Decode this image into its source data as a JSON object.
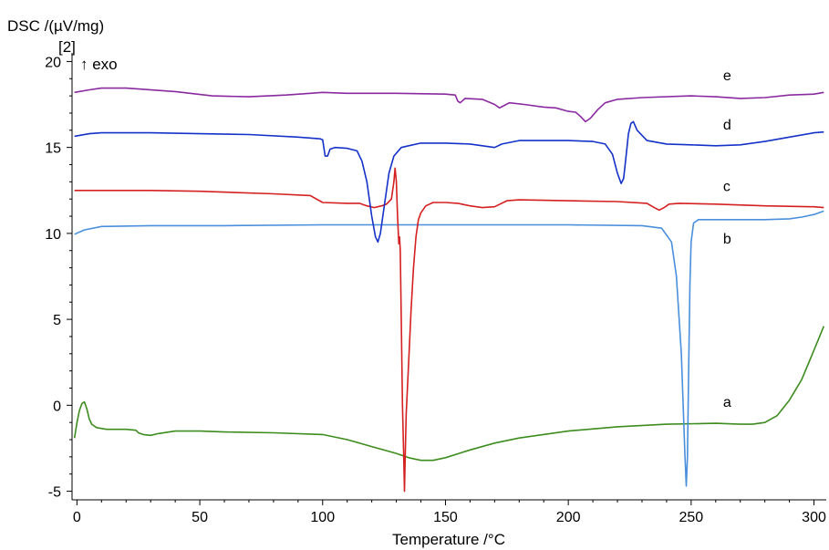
{
  "chart_data": {
    "type": "line",
    "title": "",
    "ylabel": "DSC /(µV/mg)",
    "ylabel_extra": "[2]",
    "y_annotation": "↑ exo",
    "xlabel": "Temperature /°C",
    "xlim": [
      -2,
      305
    ],
    "ylim": [
      -5.5,
      20.5
    ],
    "xticks": [
      "0",
      "50",
      "100",
      "150",
      "200",
      "250",
      "300"
    ],
    "yticks": [
      "-5",
      "0",
      "5",
      "10",
      "15",
      "20"
    ],
    "xtick_values": [
      0,
      50,
      100,
      150,
      200,
      250,
      300
    ],
    "ytick_values": [
      -5,
      0,
      5,
      10,
      15,
      20
    ],
    "grid": false,
    "series": [
      {
        "name": "a",
        "color": "#3c8c1e",
        "points": [
          [
            -1,
            -1.9
          ],
          [
            0,
            -1.0
          ],
          [
            1,
            -0.3
          ],
          [
            2,
            0.1
          ],
          [
            3,
            0.2
          ],
          [
            4,
            -0.2
          ],
          [
            5,
            -0.8
          ],
          [
            6,
            -1.1
          ],
          [
            8,
            -1.3
          ],
          [
            12,
            -1.4
          ],
          [
            16,
            -1.4
          ],
          [
            20,
            -1.4
          ],
          [
            24,
            -1.45
          ],
          [
            25,
            -1.6
          ],
          [
            27,
            -1.7
          ],
          [
            30,
            -1.75
          ],
          [
            33,
            -1.65
          ],
          [
            40,
            -1.5
          ],
          [
            50,
            -1.5
          ],
          [
            60,
            -1.55
          ],
          [
            80,
            -1.6
          ],
          [
            100,
            -1.7
          ],
          [
            110,
            -2.0
          ],
          [
            120,
            -2.4
          ],
          [
            130,
            -2.8
          ],
          [
            135,
            -3.05
          ],
          [
            140,
            -3.2
          ],
          [
            145,
            -3.2
          ],
          [
            150,
            -3.05
          ],
          [
            160,
            -2.6
          ],
          [
            170,
            -2.2
          ],
          [
            180,
            -1.9
          ],
          [
            200,
            -1.5
          ],
          [
            220,
            -1.25
          ],
          [
            240,
            -1.1
          ],
          [
            260,
            -1.05
          ],
          [
            270,
            -1.1
          ],
          [
            275,
            -1.1
          ],
          [
            280,
            -1.0
          ],
          [
            285,
            -0.6
          ],
          [
            290,
            0.3
          ],
          [
            295,
            1.5
          ],
          [
            300,
            3.2
          ],
          [
            304,
            4.6
          ]
        ]
      },
      {
        "name": "b",
        "color": "#4a8fdc",
        "points": [
          [
            -1,
            9.95
          ],
          [
            3,
            10.2
          ],
          [
            10,
            10.4
          ],
          [
            30,
            10.45
          ],
          [
            60,
            10.45
          ],
          [
            100,
            10.5
          ],
          [
            150,
            10.5
          ],
          [
            200,
            10.5
          ],
          [
            230,
            10.45
          ],
          [
            238,
            10.3
          ],
          [
            242,
            9.5
          ],
          [
            244,
            7.5
          ],
          [
            246,
            3.0
          ],
          [
            247.5,
            -3.0
          ],
          [
            248,
            -4.7
          ],
          [
            248.5,
            -3.0
          ],
          [
            249,
            2.0
          ],
          [
            249.5,
            7.0
          ],
          [
            250,
            9.5
          ],
          [
            251,
            10.6
          ],
          [
            253,
            10.8
          ],
          [
            260,
            10.8
          ],
          [
            280,
            10.8
          ],
          [
            290,
            10.85
          ],
          [
            295,
            10.95
          ],
          [
            300,
            11.1
          ],
          [
            304,
            11.3
          ]
        ]
      },
      {
        "name": "c",
        "color": "#d42020",
        "points": [
          [
            -1,
            12.5
          ],
          [
            10,
            12.5
          ],
          [
            30,
            12.5
          ],
          [
            50,
            12.45
          ],
          [
            80,
            12.3
          ],
          [
            95,
            12.2
          ],
          [
            100,
            11.8
          ],
          [
            110,
            11.75
          ],
          [
            115,
            11.75
          ],
          [
            118,
            11.6
          ],
          [
            121,
            11.5
          ],
          [
            124,
            11.6
          ],
          [
            126,
            11.7
          ],
          [
            128,
            12.0
          ],
          [
            129,
            13.0
          ],
          [
            129.5,
            13.8
          ],
          [
            130,
            13.0
          ],
          [
            130.5,
            11.0
          ],
          [
            131,
            9.4
          ],
          [
            131.3,
            9.8
          ],
          [
            131.6,
            9.0
          ],
          [
            132,
            5.0
          ],
          [
            132.5,
            0.0
          ],
          [
            133,
            -3.0
          ],
          [
            133.3,
            -5.0
          ],
          [
            133.6,
            -3.0
          ],
          [
            134,
            -0.5
          ],
          [
            135,
            2.5
          ],
          [
            136,
            5.5
          ],
          [
            137,
            8.0
          ],
          [
            138,
            9.8
          ],
          [
            139,
            10.8
          ],
          [
            140,
            11.2
          ],
          [
            142,
            11.6
          ],
          [
            145,
            11.8
          ],
          [
            150,
            11.8
          ],
          [
            155,
            11.75
          ],
          [
            160,
            11.6
          ],
          [
            165,
            11.5
          ],
          [
            170,
            11.55
          ],
          [
            175,
            11.9
          ],
          [
            180,
            11.95
          ],
          [
            200,
            11.9
          ],
          [
            220,
            11.85
          ],
          [
            232,
            11.75
          ],
          [
            235,
            11.5
          ],
          [
            237,
            11.35
          ],
          [
            239,
            11.5
          ],
          [
            241,
            11.7
          ],
          [
            245,
            11.75
          ],
          [
            260,
            11.7
          ],
          [
            280,
            11.6
          ],
          [
            300,
            11.55
          ],
          [
            304,
            11.5
          ]
        ]
      },
      {
        "name": "d",
        "color": "#1432c8",
        "points": [
          [
            -1,
            15.65
          ],
          [
            5,
            15.8
          ],
          [
            10,
            15.85
          ],
          [
            30,
            15.85
          ],
          [
            50,
            15.8
          ],
          [
            70,
            15.75
          ],
          [
            90,
            15.6
          ],
          [
            99,
            15.5
          ],
          [
            100,
            15.45
          ],
          [
            100.5,
            15.0
          ],
          [
            101,
            14.5
          ],
          [
            102,
            14.5
          ],
          [
            103,
            14.9
          ],
          [
            105,
            15.0
          ],
          [
            110,
            14.95
          ],
          [
            114,
            14.8
          ],
          [
            116,
            14.2
          ],
          [
            118,
            13.0
          ],
          [
            120,
            11.0
          ],
          [
            121.5,
            9.8
          ],
          [
            122.5,
            9.5
          ],
          [
            123.5,
            10.0
          ],
          [
            125,
            11.5
          ],
          [
            127,
            13.5
          ],
          [
            129,
            14.5
          ],
          [
            132,
            15.0
          ],
          [
            135,
            15.1
          ],
          [
            140,
            15.25
          ],
          [
            150,
            15.25
          ],
          [
            160,
            15.2
          ],
          [
            165,
            15.1
          ],
          [
            170,
            15.0
          ],
          [
            173,
            15.2
          ],
          [
            180,
            15.4
          ],
          [
            200,
            15.4
          ],
          [
            210,
            15.35
          ],
          [
            215,
            15.2
          ],
          [
            218,
            14.6
          ],
          [
            220,
            13.5
          ],
          [
            221.5,
            12.9
          ],
          [
            222.5,
            13.2
          ],
          [
            223.5,
            14.5
          ],
          [
            224.5,
            15.8
          ],
          [
            225.5,
            16.4
          ],
          [
            226.5,
            16.5
          ],
          [
            228,
            16.0
          ],
          [
            232,
            15.4
          ],
          [
            240,
            15.2
          ],
          [
            250,
            15.15
          ],
          [
            260,
            15.1
          ],
          [
            270,
            15.15
          ],
          [
            280,
            15.35
          ],
          [
            290,
            15.6
          ],
          [
            300,
            15.85
          ],
          [
            304,
            15.9
          ]
        ]
      },
      {
        "name": "e",
        "color": "#8a2aa0",
        "points": [
          [
            -1,
            18.2
          ],
          [
            5,
            18.35
          ],
          [
            10,
            18.45
          ],
          [
            20,
            18.45
          ],
          [
            40,
            18.25
          ],
          [
            55,
            18.0
          ],
          [
            70,
            17.95
          ],
          [
            85,
            18.05
          ],
          [
            95,
            18.15
          ],
          [
            100,
            18.2
          ],
          [
            110,
            18.15
          ],
          [
            130,
            18.15
          ],
          [
            150,
            18.1
          ],
          [
            154,
            18.05
          ],
          [
            155,
            17.7
          ],
          [
            156,
            17.6
          ],
          [
            158,
            17.85
          ],
          [
            165,
            17.8
          ],
          [
            170,
            17.5
          ],
          [
            172,
            17.3
          ],
          [
            174,
            17.45
          ],
          [
            176,
            17.6
          ],
          [
            182,
            17.5
          ],
          [
            190,
            17.35
          ],
          [
            195,
            17.3
          ],
          [
            200,
            17.1
          ],
          [
            203,
            17.05
          ],
          [
            205,
            16.8
          ],
          [
            207,
            16.5
          ],
          [
            209,
            16.7
          ],
          [
            212,
            17.2
          ],
          [
            215,
            17.6
          ],
          [
            220,
            17.8
          ],
          [
            230,
            17.9
          ],
          [
            250,
            18.0
          ],
          [
            260,
            17.95
          ],
          [
            270,
            17.85
          ],
          [
            280,
            17.9
          ],
          [
            290,
            18.05
          ],
          [
            300,
            18.1
          ],
          [
            304,
            18.2
          ]
        ]
      }
    ],
    "labels": [
      {
        "text": "e",
        "x": 263,
        "y": 18.9
      },
      {
        "text": "d",
        "x": 263,
        "y": 16.05
      },
      {
        "text": "c",
        "x": 263,
        "y": 12.45
      },
      {
        "text": "b",
        "x": 263,
        "y": 9.4
      },
      {
        "text": "a",
        "x": 263,
        "y": -0.1
      }
    ]
  }
}
